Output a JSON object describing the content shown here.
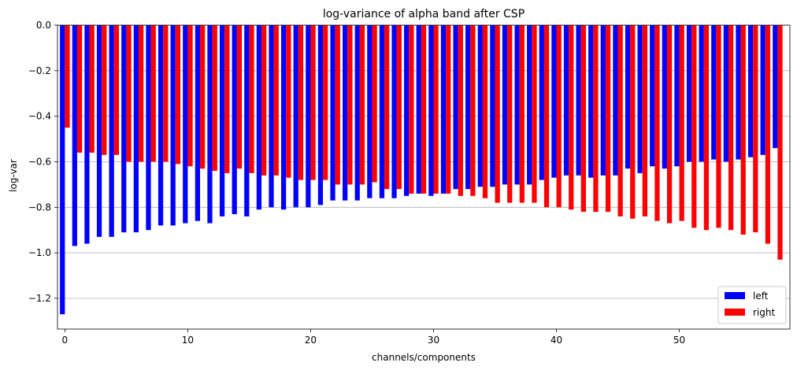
{
  "chart_data": {
    "type": "bar",
    "title": "log-variance of alpha band after CSP",
    "xlabel": "channels/components",
    "ylabel": "log-var",
    "xlim": [
      -0.6,
      59.0
    ],
    "ylim": [
      -1.335,
      0.0
    ],
    "xticks": [
      0,
      10,
      20,
      30,
      40,
      50
    ],
    "xtick_labels": [
      "0",
      "10",
      "20",
      "30",
      "40",
      "50"
    ],
    "yticks": [
      0.0,
      -0.2,
      -0.4,
      -0.6,
      -0.8,
      -1.0,
      -1.2
    ],
    "ytick_labels": [
      "0.0",
      "−0.2",
      "−0.4",
      "−0.6",
      "−0.8",
      "−1.0",
      "−1.2"
    ],
    "grid": "y",
    "legend_position": "lower-right",
    "x": [
      0,
      1,
      2,
      3,
      4,
      5,
      6,
      7,
      8,
      9,
      10,
      11,
      12,
      13,
      14,
      15,
      16,
      17,
      18,
      19,
      20,
      21,
      22,
      23,
      24,
      25,
      26,
      27,
      28,
      29,
      30,
      31,
      32,
      33,
      34,
      35,
      36,
      37,
      38,
      39,
      40,
      41,
      42,
      43,
      44,
      45,
      46,
      47,
      48,
      49,
      50,
      51,
      52,
      53,
      54,
      55,
      56,
      57,
      58
    ],
    "series": [
      {
        "name": "left",
        "color": "#0000ff",
        "values": [
          -1.27,
          -0.97,
          -0.96,
          -0.93,
          -0.93,
          -0.91,
          -0.91,
          -0.9,
          -0.88,
          -0.88,
          -0.87,
          -0.86,
          -0.87,
          -0.84,
          -0.83,
          -0.84,
          -0.81,
          -0.8,
          -0.81,
          -0.8,
          -0.8,
          -0.79,
          -0.77,
          -0.77,
          -0.77,
          -0.76,
          -0.76,
          -0.76,
          -0.75,
          -0.74,
          -0.75,
          -0.74,
          -0.72,
          -0.72,
          -0.71,
          -0.71,
          -0.7,
          -0.7,
          -0.7,
          -0.68,
          -0.67,
          -0.66,
          -0.66,
          -0.67,
          -0.66,
          -0.66,
          -0.63,
          -0.65,
          -0.62,
          -0.63,
          -0.62,
          -0.6,
          -0.6,
          -0.59,
          -0.6,
          -0.59,
          -0.58,
          -0.57,
          -0.54
        ]
      },
      {
        "name": "right",
        "color": "#ff0000",
        "values": [
          -0.45,
          -0.56,
          -0.56,
          -0.57,
          -0.57,
          -0.6,
          -0.6,
          -0.6,
          -0.6,
          -0.61,
          -0.62,
          -0.63,
          -0.64,
          -0.65,
          -0.63,
          -0.65,
          -0.66,
          -0.66,
          -0.67,
          -0.68,
          -0.68,
          -0.68,
          -0.7,
          -0.7,
          -0.7,
          -0.69,
          -0.72,
          -0.72,
          -0.74,
          -0.74,
          -0.74,
          -0.74,
          -0.75,
          -0.75,
          -0.76,
          -0.78,
          -0.78,
          -0.78,
          -0.78,
          -0.8,
          -0.8,
          -0.81,
          -0.82,
          -0.82,
          -0.82,
          -0.84,
          -0.85,
          -0.84,
          -0.86,
          -0.87,
          -0.86,
          -0.89,
          -0.9,
          -0.89,
          -0.9,
          -0.92,
          -0.91,
          -0.96,
          -1.03
        ]
      }
    ]
  }
}
